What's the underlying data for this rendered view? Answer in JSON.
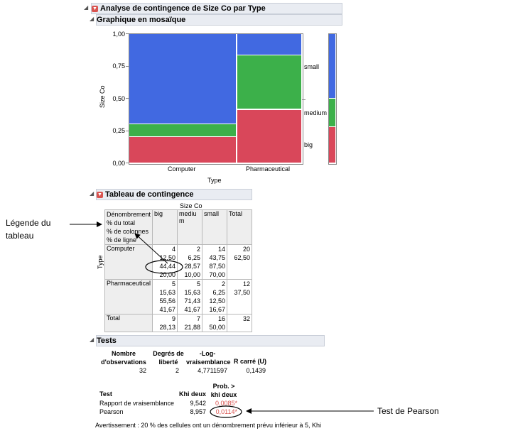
{
  "report": {
    "title": "Analyse de contingence de Size Co par Type",
    "mosaic": {
      "title": "Graphique en mosaïque",
      "y_axis_label": "Size Co",
      "x_axis_label": "Type",
      "y_ticks": [
        "1,00",
        "0,75",
        "0,50",
        "0,25",
        "0,00"
      ],
      "categories": [
        "Computer",
        "Pharmaceutical"
      ],
      "segment_labels": [
        "small",
        "medium",
        "big"
      ],
      "colors": {
        "small": "#4169e1",
        "medium": "#3cb04a",
        "big": "#d9475a"
      }
    },
    "contingency": {
      "title": "Tableau de contingence",
      "col_var": "Size Co",
      "row_var": "Type",
      "legend_lines": [
        "Dénombrement",
        "% du total",
        "% de colonnes",
        "% de ligne"
      ],
      "columns": [
        "big",
        "medium",
        "small",
        "Total"
      ],
      "rows": [
        {
          "label": "Computer",
          "cells": [
            [
              "4",
              "12,50",
              "44,44",
              "20,00"
            ],
            [
              "2",
              "6,25",
              "28,57",
              "10,00"
            ],
            [
              "14",
              "43,75",
              "87,50",
              "70,00"
            ],
            [
              "20",
              "62,50"
            ]
          ]
        },
        {
          "label": "Pharmaceutical",
          "cells": [
            [
              "5",
              "15,63",
              "55,56",
              "41,67"
            ],
            [
              "5",
              "15,63",
              "71,43",
              "41,67"
            ],
            [
              "2",
              "6,25",
              "12,50",
              "16,67"
            ],
            [
              "12",
              "37,50"
            ]
          ]
        },
        {
          "label": "Total",
          "cells": [
            [
              "9",
              "28,13"
            ],
            [
              "7",
              "21,88"
            ],
            [
              "16",
              "50,00"
            ],
            [
              "32"
            ]
          ]
        }
      ]
    },
    "tests": {
      "title": "Tests",
      "summary_headers": [
        "Nombre d'observations",
        "Degrés de liberté",
        "-Log-vraisemblance",
        "R carré (U)"
      ],
      "summary_values": [
        "32",
        "2",
        "4,7711597",
        "0,1439"
      ],
      "test_headers": [
        "Test",
        "Khi deux",
        "Prob. > khi deux"
      ],
      "test_rows": [
        {
          "name": "Rapport de vraisemblance",
          "chi": "9,542",
          "prob": "0,0085*"
        },
        {
          "name": "Pearson",
          "chi": "8,957",
          "prob": "0,0114*"
        }
      ],
      "warning": "Avertissement : 20 % des cellules ont un dénombrement prévu inférieur à 5, Khi"
    }
  },
  "annotations": {
    "legend_label": "Légende du tableau",
    "pearson_label": "Test de Pearson"
  }
}
